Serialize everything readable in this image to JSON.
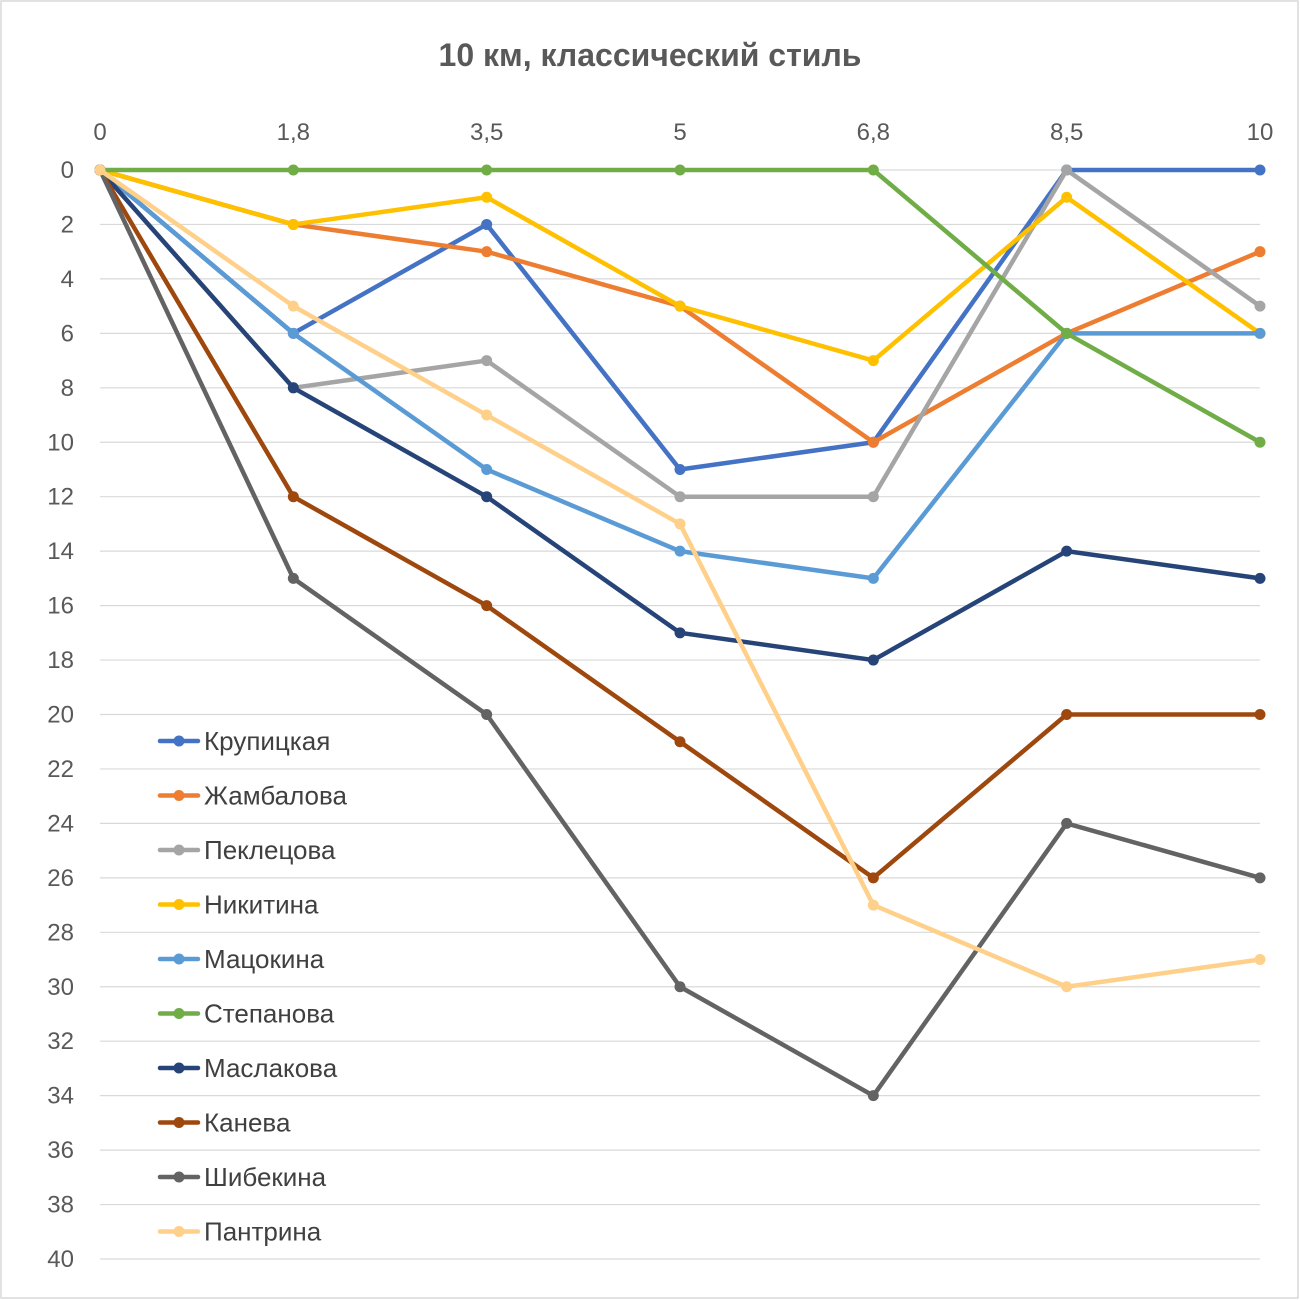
{
  "chart_data": {
    "type": "line",
    "title": "10 км, классический стиль",
    "xlabel": "",
    "ylabel": "",
    "categories": [
      "0",
      "1,8",
      "3,5",
      "5",
      "6,8",
      "8,5",
      "10"
    ],
    "x_axis_position": "top",
    "y_axis_inverted": true,
    "ylim": [
      0,
      40
    ],
    "yticks": [
      0,
      2,
      4,
      6,
      8,
      10,
      12,
      14,
      16,
      18,
      20,
      22,
      24,
      26,
      28,
      30,
      32,
      34,
      36,
      38,
      40
    ],
    "grid": "horizontal",
    "legend_position": "inside-bottom-left",
    "series": [
      {
        "name": "Крупицкая",
        "color": "#4472c4",
        "values": [
          0,
          6,
          2,
          11,
          10,
          0,
          0
        ]
      },
      {
        "name": "Жамбалова",
        "color": "#ed7d31",
        "values": [
          0,
          2,
          3,
          5,
          10,
          6,
          3
        ]
      },
      {
        "name": "Пеклецова",
        "color": "#a5a5a5",
        "values": [
          0,
          8,
          7,
          12,
          12,
          0,
          5
        ]
      },
      {
        "name": "Никитина",
        "color": "#ffc000",
        "values": [
          0,
          2,
          1,
          5,
          7,
          1,
          6
        ]
      },
      {
        "name": "Мацокина",
        "color": "#5b9bd5",
        "values": [
          0,
          6,
          11,
          14,
          15,
          6,
          6
        ]
      },
      {
        "name": "Степанова",
        "color": "#70ad47",
        "values": [
          0,
          0,
          0,
          0,
          0,
          6,
          10
        ]
      },
      {
        "name": "Маслакова",
        "color": "#264478",
        "values": [
          0,
          8,
          12,
          17,
          18,
          14,
          15
        ]
      },
      {
        "name": "Канева",
        "color": "#9e480e",
        "values": [
          0,
          12,
          16,
          21,
          26,
          20,
          20
        ]
      },
      {
        "name": "Шибекина",
        "color": "#636363",
        "values": [
          0,
          15,
          20,
          30,
          34,
          24,
          26
        ]
      },
      {
        "name": "Пантрина",
        "color": "#ffd08a",
        "values": [
          0,
          5,
          9,
          13,
          27,
          30,
          29
        ]
      }
    ]
  }
}
